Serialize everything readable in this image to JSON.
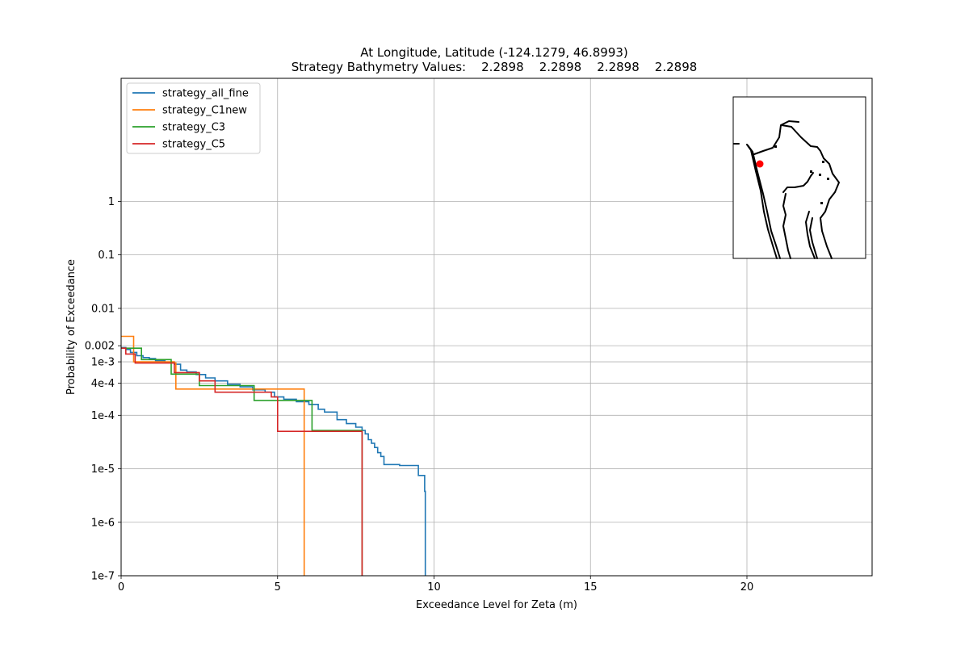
{
  "chart_data": {
    "type": "line",
    "title_line1": "At Longitude, Latitude (-124.1279,  46.8993)",
    "title_line2": "Strategy Bathymetry Values:    2.2898    2.2898    2.2898    2.2898",
    "xlabel": "Exceedance Level for Zeta (m)",
    "ylabel": "Probability of Exceedance",
    "xlim": [
      0,
      24
    ],
    "ylim": [
      1e-07,
      200
    ],
    "yscale": "log",
    "grid": true,
    "legend_position": "top-left",
    "x_ticks": [
      {
        "value": 0,
        "label": "0"
      },
      {
        "value": 5,
        "label": "5"
      },
      {
        "value": 10,
        "label": "10"
      },
      {
        "value": 15,
        "label": "15"
      },
      {
        "value": 20,
        "label": "20"
      }
    ],
    "y_ticks": [
      {
        "value": 1e-07,
        "label": "1e-7"
      },
      {
        "value": 1e-06,
        "label": "1e-6"
      },
      {
        "value": 1e-05,
        "label": "1e-5"
      },
      {
        "value": 0.0001,
        "label": "1e-4"
      },
      {
        "value": 0.0004,
        "label": "4e-4"
      },
      {
        "value": 0.001,
        "label": "1e-3"
      },
      {
        "value": 0.002,
        "label": "0.002"
      },
      {
        "value": 0.01,
        "label": "0.01"
      },
      {
        "value": 0.1,
        "label": "0.1"
      },
      {
        "value": 1,
        "label": "1"
      }
    ],
    "series": [
      {
        "name": "strategy_all_fine",
        "color": "#1f77b4",
        "points": [
          [
            0,
            0.00185
          ],
          [
            0.15,
            0.0017
          ],
          [
            0.3,
            0.0015
          ],
          [
            0.5,
            0.0013
          ],
          [
            0.7,
            0.0012
          ],
          [
            0.9,
            0.00115
          ],
          [
            1.1,
            0.00105
          ],
          [
            1.4,
            0.00098
          ],
          [
            1.7,
            0.0009
          ],
          [
            1.9,
            0.0007
          ],
          [
            2.1,
            0.00065
          ],
          [
            2.4,
            0.00058
          ],
          [
            2.7,
            0.0005
          ],
          [
            3.0,
            0.00044
          ],
          [
            3.4,
            0.00038
          ],
          [
            3.8,
            0.00034
          ],
          [
            4.2,
            0.0003
          ],
          [
            4.6,
            0.00027
          ],
          [
            4.9,
            0.00022
          ],
          [
            5.2,
            0.0002
          ],
          [
            5.6,
            0.00018
          ],
          [
            6.0,
            0.00016
          ],
          [
            6.3,
            0.00013
          ],
          [
            6.5,
            0.000115
          ],
          [
            6.9,
            8.3e-05
          ],
          [
            7.2,
            7e-05
          ],
          [
            7.5,
            6e-05
          ],
          [
            7.7,
            5.2e-05
          ],
          [
            7.8,
            4.5e-05
          ],
          [
            7.9,
            3.5e-05
          ],
          [
            8.0,
            3e-05
          ],
          [
            8.1,
            2.5e-05
          ],
          [
            8.2,
            2e-05
          ],
          [
            8.3,
            1.7e-05
          ],
          [
            8.4,
            1.2e-05
          ],
          [
            8.9,
            1.15e-05
          ],
          [
            9.5,
            7.5e-06
          ],
          [
            9.7,
            3.8e-06
          ]
        ],
        "drop_to_floor_at": 9.72
      },
      {
        "name": "strategy_C1new",
        "color": "#ff7f0e",
        "points": [
          [
            0,
            0.003
          ],
          [
            0.4,
            0.001
          ],
          [
            1.7,
            0.00095
          ],
          [
            1.75,
            0.00031
          ]
        ],
        "drop_to_floor_at": 5.85
      },
      {
        "name": "strategy_C3",
        "color": "#2ca02c",
        "points": [
          [
            0,
            0.0018
          ],
          [
            0.65,
            0.0011
          ],
          [
            1.6,
            0.00095
          ],
          [
            1.6,
            0.00059
          ],
          [
            2.5,
            0.00058
          ],
          [
            2.5,
            0.00036
          ],
          [
            4.25,
            0.00035
          ],
          [
            4.25,
            0.00019
          ],
          [
            6.1,
            0.00019
          ],
          [
            6.1,
            5.2e-05
          ]
        ],
        "drop_to_floor_at": 7.7
      },
      {
        "name": "strategy_C5",
        "color": "#d62728",
        "points": [
          [
            0,
            0.0018
          ],
          [
            0.15,
            0.0014
          ],
          [
            0.45,
            0.00095
          ],
          [
            1.7,
            0.00095
          ],
          [
            1.7,
            0.00063
          ],
          [
            2.5,
            0.00063
          ],
          [
            2.5,
            0.00044
          ],
          [
            3.0,
            0.00044
          ],
          [
            3.0,
            0.00027
          ],
          [
            4.8,
            0.00027
          ],
          [
            4.8,
            0.00022
          ],
          [
            5.0,
            0.00022
          ],
          [
            5.0,
            5e-05
          ]
        ],
        "drop_to_floor_at": 7.7
      }
    ],
    "inset_map": {
      "marker_color": "#ff0000",
      "outline_color": "#000000"
    }
  }
}
